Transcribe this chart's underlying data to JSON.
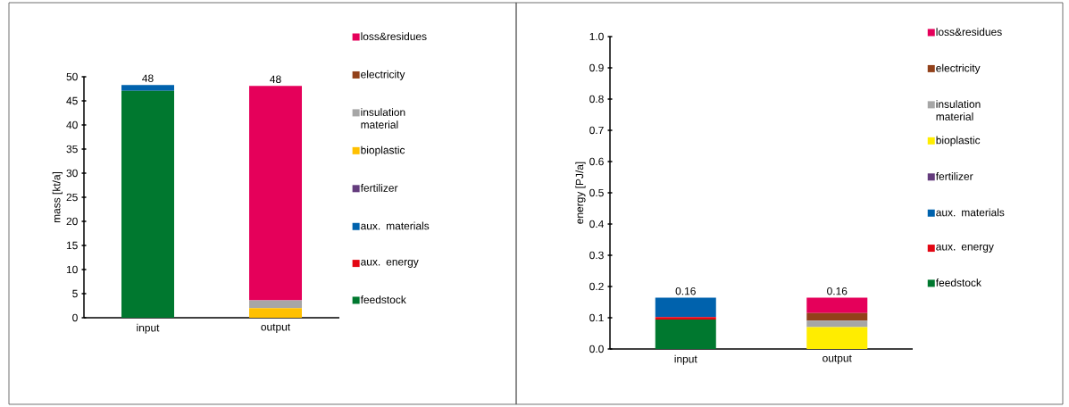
{
  "chart_data": [
    {
      "type": "bar",
      "stacked": true,
      "ylabel": "mass [kt/a]",
      "categories": [
        "input",
        "output"
      ],
      "ylim": [
        0,
        50
      ],
      "yticks": [
        0,
        5,
        10,
        15,
        20,
        25,
        30,
        35,
        40,
        45,
        50
      ],
      "legend": "right",
      "totals": [
        "48",
        "48"
      ],
      "series": [
        {
          "name": "feedstock",
          "color": "#00782f",
          "values": [
            47.1,
            0
          ]
        },
        {
          "name": "aux. energy",
          "color": "#e30613",
          "values": [
            0,
            0
          ]
        },
        {
          "name": "aux. materials",
          "color": "#0062ad",
          "values": [
            1.2,
            0
          ]
        },
        {
          "name": "fertilizer",
          "color": "#643c7d",
          "values": [
            0,
            0
          ]
        },
        {
          "name": "bioplastic",
          "color": "#ffc000",
          "values": [
            0,
            2.0
          ]
        },
        {
          "name": "insulation material",
          "color": "#a6a6a6",
          "values": [
            0,
            1.6
          ]
        },
        {
          "name": "electricity",
          "color": "#92411a",
          "values": [
            0,
            0
          ]
        },
        {
          "name": "loss&residues",
          "color": "#e5005a",
          "values": [
            0,
            44.5
          ]
        }
      ]
    },
    {
      "type": "bar",
      "stacked": true,
      "ylabel": "energy [PJ/a]",
      "categories": [
        "input",
        "output"
      ],
      "ylim": [
        0,
        1
      ],
      "yticks": [
        {
          "value": 0,
          "label": "0.0"
        },
        0.1,
        0.2,
        0.3,
        0.4,
        0.5,
        0.6,
        0.7,
        0.8,
        0.9,
        {
          "value": 1,
          "label": "1.0"
        }
      ],
      "legend": "right",
      "totals": [
        "0.16",
        "0.16"
      ],
      "series": [
        {
          "name": "feedstock",
          "color": "#00782f",
          "values": [
            0.094,
            0
          ]
        },
        {
          "name": "aux. energy",
          "color": "#e30613",
          "values": [
            0.008,
            0
          ]
        },
        {
          "name": "aux. materials",
          "color": "#0062ad",
          "values": [
            0.062,
            0
          ]
        },
        {
          "name": "fertilizer",
          "color": "#643c7d",
          "values": [
            0,
            0
          ]
        },
        {
          "name": "bioplastic",
          "color": "#ffed00",
          "values": [
            0,
            0.07
          ]
        },
        {
          "name": "insulation material",
          "color": "#a6a6a6",
          "values": [
            0,
            0.021
          ]
        },
        {
          "name": "electricity",
          "color": "#92411a",
          "values": [
            0,
            0.024
          ]
        },
        {
          "name": "loss&residues",
          "color": "#e5005a",
          "values": [
            0,
            0.049
          ]
        }
      ]
    }
  ]
}
